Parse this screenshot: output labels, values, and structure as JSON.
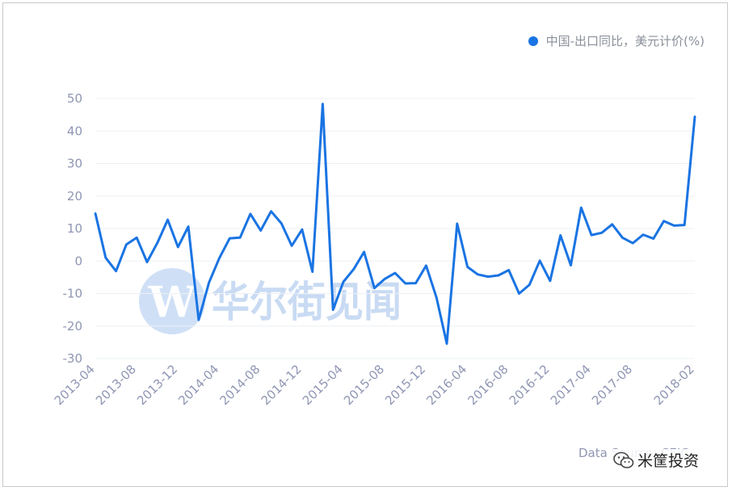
{
  "legend": {
    "label": "中国-出口同比，美元计价(%)",
    "color": "#1a74e3"
  },
  "watermark": {
    "text": "华尔街见闻",
    "logo_letter": "W"
  },
  "source": {
    "text": "Data Source: CEIC"
  },
  "brand": {
    "text": "米筐投资",
    "icon": "wechat-icon"
  },
  "chart_data": {
    "type": "line",
    "title": "",
    "xlabel": "",
    "ylabel": "",
    "ylim": [
      -30,
      50
    ],
    "yticks": [
      50,
      40,
      30,
      20,
      10,
      0,
      -10,
      -20,
      -30
    ],
    "grid": true,
    "legend_position": "top-right",
    "xtick_labels": [
      "2013-04",
      "2013-08",
      "2013-12",
      "2014-04",
      "2014-08",
      "2014-12",
      "2015-04",
      "2015-08",
      "2015-12",
      "2016-04",
      "2016-08",
      "2016-12",
      "2017-04",
      "2017-08",
      "2018-02"
    ],
    "xtick_positions": [
      "2013-04",
      "2013-08",
      "2013-12",
      "2014-04",
      "2014-08",
      "2014-12",
      "2015-04",
      "2015-08",
      "2015-12",
      "2016-04",
      "2016-08",
      "2016-12",
      "2017-04",
      "2017-08",
      "2018-02"
    ],
    "x": [
      "2013-04",
      "2013-05",
      "2013-06",
      "2013-07",
      "2013-08",
      "2013-09",
      "2013-10",
      "2013-11",
      "2013-12",
      "2014-01",
      "2014-02",
      "2014-03",
      "2014-04",
      "2014-05",
      "2014-06",
      "2014-07",
      "2014-08",
      "2014-09",
      "2014-10",
      "2014-11",
      "2014-12",
      "2015-01",
      "2015-02",
      "2015-03",
      "2015-04",
      "2015-05",
      "2015-06",
      "2015-07",
      "2015-08",
      "2015-09",
      "2015-10",
      "2015-11",
      "2015-12",
      "2016-01",
      "2016-02",
      "2016-03",
      "2016-04",
      "2016-05",
      "2016-06",
      "2016-07",
      "2016-08",
      "2016-09",
      "2016-10",
      "2016-11",
      "2016-12",
      "2017-01",
      "2017-02",
      "2017-03",
      "2017-04",
      "2017-05",
      "2017-06",
      "2017-07",
      "2017-08",
      "2017-09",
      "2017-10",
      "2017-11",
      "2017-12",
      "2018-01",
      "2018-02"
    ],
    "series": [
      {
        "name": "中国-出口同比，美元计价(%)",
        "color": "#1a74e3",
        "values": [
          14.7,
          1.0,
          -3.1,
          5.1,
          7.2,
          -0.3,
          5.6,
          12.7,
          4.3,
          10.6,
          -18.1,
          -6.6,
          0.9,
          7.0,
          7.2,
          14.5,
          9.4,
          15.3,
          11.6,
          4.7,
          9.7,
          -3.3,
          48.3,
          -15.0,
          -6.4,
          -2.5,
          2.8,
          -8.3,
          -5.5,
          -3.7,
          -6.9,
          -6.8,
          -1.4,
          -11.2,
          -25.4,
          11.5,
          -1.8,
          -4.1,
          -4.8,
          -4.4,
          -2.8,
          -10.0,
          -7.3,
          0.1,
          -6.1,
          7.9,
          -1.3,
          16.4,
          8.0,
          8.7,
          11.3,
          7.2,
          5.5,
          8.1,
          6.9,
          12.3,
          10.9,
          11.1,
          44.5
        ]
      }
    ]
  }
}
